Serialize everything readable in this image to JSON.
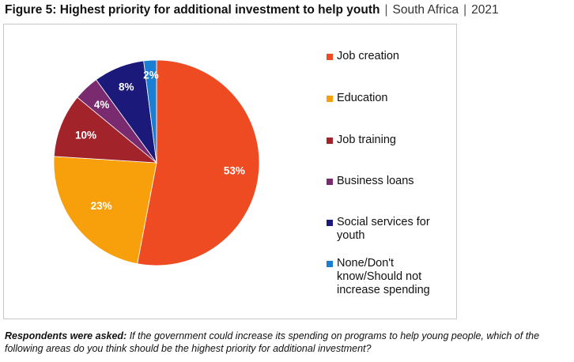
{
  "header": {
    "title_bold": "Figure 5: Highest priority for additional investment to help youth",
    "separator": "|",
    "country": "South Africa",
    "year": "2021"
  },
  "chart_data": {
    "type": "pie",
    "slices": [
      {
        "label": "Job creation",
        "value": 53,
        "display": "53%",
        "color": "#EE4B23"
      },
      {
        "label": "Education",
        "value": 23,
        "display": "23%",
        "color": "#F7A00B"
      },
      {
        "label": "Job training",
        "value": 10,
        "display": "10%",
        "color": "#A3232B"
      },
      {
        "label": "Business loans",
        "value": 4,
        "display": "4%",
        "color": "#7A2A6E"
      },
      {
        "label": "Social services for youth",
        "value": 8,
        "display": "8%",
        "color": "#1B1A7A"
      },
      {
        "label": "None/Don't know/Should not increase spending",
        "value": 2,
        "display": "2%",
        "color": "#1A7FD3"
      }
    ],
    "legend_position": "right",
    "start": "top, clockwise"
  },
  "legend": {
    "items": [
      {
        "lines": [
          "Job creation"
        ]
      },
      {
        "lines": [
          "Education"
        ]
      },
      {
        "lines": [
          "Job training"
        ]
      },
      {
        "lines": [
          "Business loans"
        ]
      },
      {
        "lines": [
          "Social services for",
          "youth"
        ]
      },
      {
        "lines": [
          "None/Don't",
          "know/Should not",
          "increase spending"
        ]
      }
    ]
  },
  "footnote": {
    "label": "Respondents were asked:",
    "text": " If the government could increase its spending on programs to help young people, which of the following areas do you think should be the highest priority for additional investment?"
  }
}
